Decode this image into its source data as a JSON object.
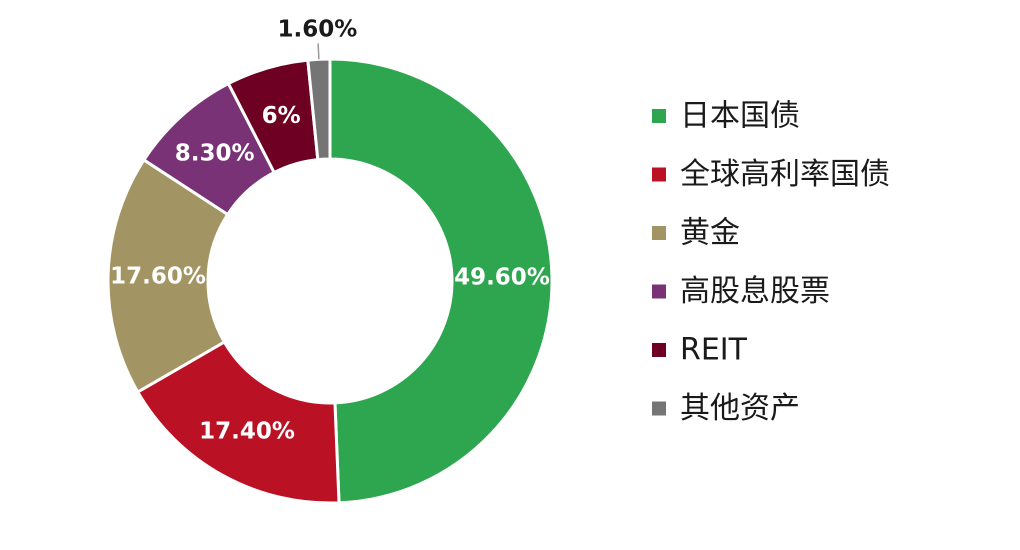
{
  "chart_data": {
    "type": "pie",
    "donut": true,
    "title": "",
    "categories": [
      "日本国债",
      "全球高利率国债",
      "黄金",
      "高股息股票",
      "REIT",
      "其他资产"
    ],
    "values": [
      49.6,
      17.4,
      17.6,
      8.3,
      6.0,
      1.6
    ],
    "value_labels": [
      "49.60%",
      "17.40%",
      "17.60%",
      "8.30%",
      "6%",
      "1.60%"
    ],
    "colors": [
      "#2ea64f",
      "#ba1125",
      "#a39463",
      "#7a3276",
      "#6d0023",
      "#757575"
    ],
    "legend_position": "right",
    "grid": false
  }
}
